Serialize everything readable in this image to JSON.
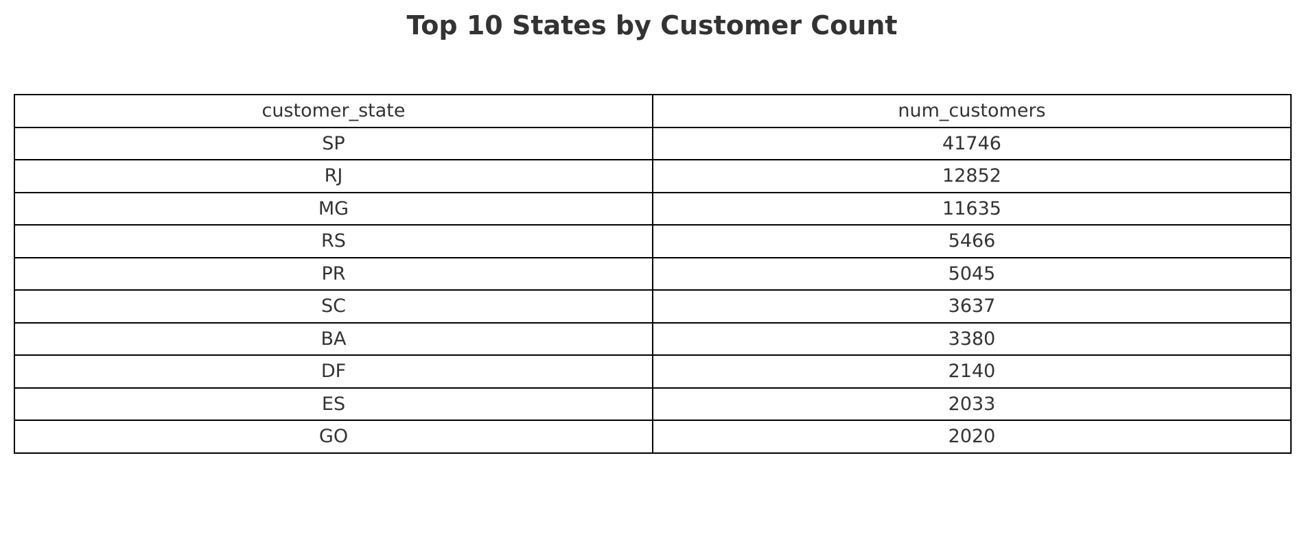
{
  "chart_data": {
    "type": "table",
    "title": "Top 10 States by Customer Count",
    "columns": [
      "customer_state",
      "num_customers"
    ],
    "rows": [
      [
        "SP",
        "41746"
      ],
      [
        "RJ",
        "12852"
      ],
      [
        "MG",
        "11635"
      ],
      [
        "RS",
        "5466"
      ],
      [
        "PR",
        "5045"
      ],
      [
        "SC",
        "3637"
      ],
      [
        "BA",
        "3380"
      ],
      [
        "DF",
        "2140"
      ],
      [
        "ES",
        "2033"
      ],
      [
        "GO",
        "2020"
      ]
    ]
  },
  "colors": {
    "text": "#333333",
    "border": "#000000",
    "background": "#ffffff"
  }
}
